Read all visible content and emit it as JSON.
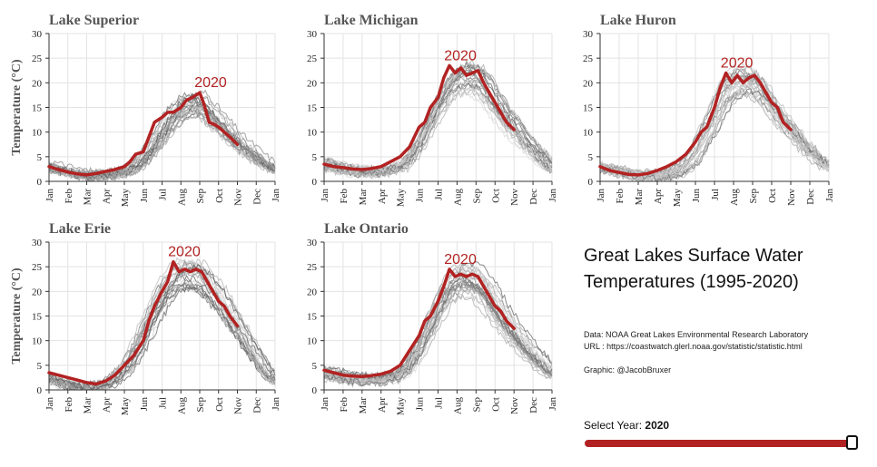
{
  "year_selector": {
    "label": "Select Year:",
    "value": "2020",
    "fraction": 1.0
  },
  "side": {
    "title_line1": "Great Lakes Surface Water",
    "title_line2": "Temperatures (1995-2020)",
    "data_source": "Data: NOAA Great Lakes Environmental Research Laboratory",
    "url": "URL : https://coastwatch.glerl.noaa.gov/statistic/statistic.html",
    "graphic": "Graphic: @JacobBruxer"
  },
  "colors": {
    "highlight": "#b22222",
    "history": "#777777",
    "grid": "#e3e3e3"
  },
  "chart_data": [
    {
      "type": "line",
      "title": "Lake Superior",
      "ylabel": "Temperature (°C)",
      "xlabel": "",
      "ylim": [
        0,
        30
      ],
      "yticks": [
        0,
        5,
        10,
        15,
        20,
        25,
        30
      ],
      "xticks": [
        "Jan",
        "Feb",
        "Mar",
        "Apr",
        "May",
        "Jun",
        "Jul",
        "Aug",
        "Sep",
        "Oct",
        "Nov",
        "Dec",
        "Jan"
      ],
      "grid": true,
      "highlight_label": "2020",
      "series": [
        {
          "name": "2020",
          "x": [
            0,
            0.5,
            1,
            1.5,
            2,
            2.5,
            3,
            3.5,
            4,
            4.3,
            4.6,
            5,
            5.3,
            5.6,
            6,
            6.3,
            6.6,
            7,
            7.3,
            7.6,
            7.8,
            8,
            8.2,
            8.5,
            8.8,
            9,
            9.3,
            9.6,
            10
          ],
          "y": [
            3,
            2.4,
            1.9,
            1.5,
            1.3,
            1.6,
            2,
            2.4,
            3,
            4,
            5.5,
            6,
            9,
            12,
            13,
            14,
            14,
            15,
            16.5,
            17,
            17.5,
            18,
            16,
            12,
            11.5,
            11,
            10,
            9,
            7.5
          ]
        }
      ],
      "history_curve": {
        "x": [
          0,
          1,
          2,
          3,
          4,
          4.5,
          5,
          5.5,
          6,
          6.5,
          7,
          7.5,
          8,
          8.5,
          9,
          9.5,
          10,
          10.5,
          11,
          11.5,
          12
        ],
        "y": [
          3,
          2,
          1.3,
          1.3,
          2,
          3,
          4.5,
          7,
          10,
          13,
          15,
          16,
          16,
          14,
          12,
          10,
          8,
          6.5,
          5,
          3.5,
          2.5
        ]
      }
    },
    {
      "type": "line",
      "title": "Lake Michigan",
      "ylabel": "",
      "ylim": [
        0,
        30
      ],
      "yticks": [
        0,
        5,
        10,
        15,
        20,
        25,
        30
      ],
      "xticks": [
        "Jan",
        "Feb",
        "Mar",
        "Apr",
        "May",
        "Jun",
        "Jul",
        "Aug",
        "Sep",
        "Oct",
        "Nov",
        "Dec",
        "Jan"
      ],
      "grid": true,
      "highlight_label": "2020",
      "series": [
        {
          "name": "2020",
          "x": [
            0,
            0.5,
            1,
            1.5,
            2,
            2.5,
            3,
            3.5,
            4,
            4.5,
            5,
            5.3,
            5.6,
            6,
            6.3,
            6.6,
            6.9,
            7.2,
            7.5,
            7.8,
            8.1,
            8.4,
            8.7,
            9,
            9.3,
            9.6,
            10
          ],
          "y": [
            3.5,
            3,
            2.8,
            2.5,
            2.4,
            2.6,
            3,
            4,
            5,
            7,
            11,
            12,
            15,
            17,
            21,
            23.5,
            22,
            23,
            21.5,
            22,
            22.5,
            20,
            18,
            16,
            14,
            12,
            10.5
          ]
        }
      ],
      "history_curve": {
        "x": [
          0,
          1,
          2,
          3,
          4,
          4.5,
          5,
          5.5,
          6,
          6.5,
          7,
          7.5,
          8,
          8.5,
          9,
          9.5,
          10,
          10.5,
          11,
          11.5,
          12
        ],
        "y": [
          3.5,
          2.5,
          2,
          2,
          3,
          5,
          8,
          12,
          16,
          19,
          21,
          21.5,
          21,
          19,
          16,
          13,
          11,
          8.5,
          6.5,
          4.5,
          3
        ]
      }
    },
    {
      "type": "line",
      "title": "Lake Huron",
      "ylabel": "",
      "ylim": [
        0,
        30
      ],
      "yticks": [
        0,
        5,
        10,
        15,
        20,
        25,
        30
      ],
      "xticks": [
        "Jan",
        "Feb",
        "Mar",
        "Apr",
        "May",
        "Jun",
        "Jul",
        "Aug",
        "Sep",
        "Oct",
        "Nov",
        "Dec",
        "Jan"
      ],
      "grid": true,
      "highlight_label": "2020",
      "series": [
        {
          "name": "2020",
          "x": [
            0,
            0.5,
            1,
            1.5,
            2,
            2.5,
            3,
            3.5,
            4,
            4.5,
            5,
            5.3,
            5.6,
            6,
            6.3,
            6.6,
            6.9,
            7.2,
            7.5,
            7.8,
            8.1,
            8.4,
            8.7,
            9,
            9.3,
            9.6,
            10
          ],
          "y": [
            3,
            2.2,
            1.8,
            1.4,
            1.3,
            1.6,
            2.2,
            3,
            4,
            5.5,
            8,
            10,
            11,
            15,
            19,
            22,
            20,
            21.5,
            20,
            21,
            21.5,
            20,
            18,
            16,
            15,
            12,
            10.5
          ]
        }
      ],
      "history_curve": {
        "x": [
          0,
          1,
          2,
          3,
          4,
          4.5,
          5,
          5.5,
          6,
          6.5,
          7,
          7.5,
          8,
          8.5,
          9,
          9.5,
          10,
          10.5,
          11,
          11.5,
          12
        ],
        "y": [
          3,
          2,
          1.2,
          1.2,
          2,
          3.5,
          6,
          10,
          14,
          18,
          20,
          21,
          20.5,
          19,
          16,
          13,
          11,
          8.5,
          6.5,
          4.5,
          3
        ]
      }
    },
    {
      "type": "line",
      "title": "Lake Erie",
      "ylabel": "Temperature (°C)",
      "ylim": [
        0,
        30
      ],
      "yticks": [
        0,
        5,
        10,
        15,
        20,
        25,
        30
      ],
      "xticks": [
        "Jan",
        "Feb",
        "Mar",
        "Apr",
        "May",
        "Jun",
        "Jul",
        "Aug",
        "Sep",
        "Oct",
        "Nov",
        "Dec",
        "Jan"
      ],
      "grid": true,
      "highlight_label": "2020",
      "series": [
        {
          "name": "2020",
          "x": [
            0,
            0.5,
            1,
            1.5,
            2,
            2.5,
            3,
            3.5,
            4,
            4.5,
            5,
            5.3,
            5.6,
            6,
            6.3,
            6.6,
            6.9,
            7.2,
            7.5,
            7.8,
            8.1,
            8.4,
            8.7,
            9,
            9.3,
            9.6,
            10
          ],
          "y": [
            3.5,
            3,
            2.5,
            2,
            1.5,
            1.2,
            1.8,
            3,
            5,
            7,
            10,
            14,
            17,
            20,
            22,
            26,
            24,
            24.5,
            24,
            24.5,
            24,
            22,
            20,
            18,
            17,
            15,
            13
          ]
        }
      ],
      "history_curve": {
        "x": [
          0,
          1,
          2,
          3,
          4,
          4.5,
          5,
          5.5,
          6,
          6.5,
          7,
          7.5,
          8,
          8.5,
          9,
          9.5,
          10,
          10.5,
          11,
          11.5,
          12
        ],
        "y": [
          2.5,
          1,
          0.5,
          1,
          4,
          7,
          11,
          15,
          19,
          22,
          23.5,
          24,
          23.5,
          21.5,
          19,
          16,
          13,
          10,
          7,
          4,
          2
        ]
      }
    },
    {
      "type": "line",
      "title": "Lake Ontario",
      "ylabel": "",
      "ylim": [
        0,
        30
      ],
      "yticks": [
        0,
        5,
        10,
        15,
        20,
        25,
        30
      ],
      "xticks": [
        "Jan",
        "Feb",
        "Mar",
        "Apr",
        "May",
        "Jun",
        "Jul",
        "Aug",
        "Sep",
        "Oct",
        "Nov",
        "Dec",
        "Jan"
      ],
      "grid": true,
      "highlight_label": "2020",
      "series": [
        {
          "name": "2020",
          "x": [
            0,
            0.5,
            1,
            1.5,
            2,
            2.5,
            3,
            3.5,
            4,
            4.5,
            5,
            5.3,
            5.6,
            6,
            6.3,
            6.6,
            6.9,
            7.2,
            7.5,
            7.8,
            8.1,
            8.4,
            8.7,
            9,
            9.3,
            9.6,
            10
          ],
          "y": [
            4,
            3.5,
            3,
            2.8,
            2.7,
            2.9,
            3.2,
            3.8,
            5,
            8,
            11,
            14,
            15,
            18,
            21,
            24.5,
            23,
            23.5,
            23,
            23.5,
            23,
            21,
            19,
            17,
            16,
            14,
            12.5
          ]
        }
      ],
      "history_curve": {
        "x": [
          0,
          1,
          2,
          3,
          4,
          4.5,
          5,
          5.5,
          6,
          6.5,
          7,
          7.5,
          8,
          8.5,
          9,
          9.5,
          10,
          10.5,
          11,
          11.5,
          12
        ],
        "y": [
          3.5,
          2.5,
          2,
          2,
          3,
          5,
          8,
          12,
          16,
          20,
          22,
          22.5,
          22,
          20,
          17,
          14,
          11.5,
          9,
          7,
          5,
          3.5
        ]
      }
    }
  ]
}
